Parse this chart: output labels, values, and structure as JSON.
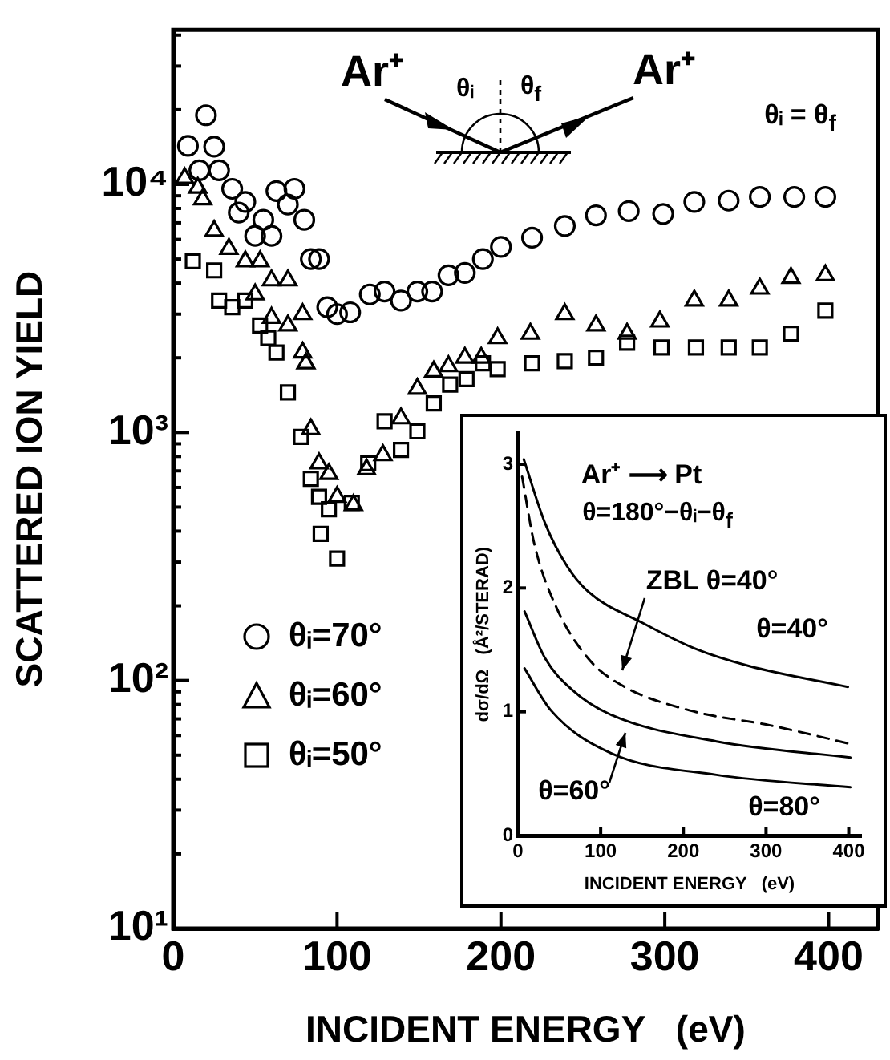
{
  "chart_data": [
    {
      "type": "scatter",
      "xlabel": "INCIDENT ENERGY   (eV)",
      "ylabel": "SCATTERED ION YIELD",
      "log": "y",
      "grid": false,
      "legend": "left",
      "xlim": [
        0,
        430
      ],
      "xticks": [
        0,
        100,
        200,
        300,
        400
      ],
      "ylim": [
        10,
        42000
      ],
      "yticks": [
        {
          "value": 10,
          "label": "10¹"
        },
        {
          "value": 20,
          "label": null
        },
        {
          "value": 30,
          "label": null
        },
        {
          "value": 40,
          "label": null
        },
        {
          "value": 50,
          "label": null
        },
        {
          "value": 60,
          "label": null
        },
        {
          "value": 70,
          "label": null
        },
        {
          "value": 80,
          "label": null
        },
        {
          "value": 90,
          "label": null
        },
        {
          "value": 100,
          "label": "10²"
        },
        {
          "value": 200,
          "label": null
        },
        {
          "value": 300,
          "label": null
        },
        {
          "value": 400,
          "label": null
        },
        {
          "value": 500,
          "label": null
        },
        {
          "value": 600,
          "label": null
        },
        {
          "value": 700,
          "label": null
        },
        {
          "value": 800,
          "label": null
        },
        {
          "value": 900,
          "label": null
        },
        {
          "value": 1000,
          "label": "10³"
        },
        {
          "value": 2000,
          "label": null
        },
        {
          "value": 3000,
          "label": null
        },
        {
          "value": 4000,
          "label": null
        },
        {
          "value": 5000,
          "label": null
        },
        {
          "value": 6000,
          "label": null
        },
        {
          "value": 7000,
          "label": null
        },
        {
          "value": 8000,
          "label": null
        },
        {
          "value": 9000,
          "label": null
        },
        {
          "value": 10000,
          "label": "10⁴"
        },
        {
          "value": 20000,
          "label": null
        },
        {
          "value": 30000,
          "label": null
        },
        {
          "value": 40000,
          "label": null
        }
      ],
      "annotations": [
        "Ar⁺",
        "θᵢ",
        "θ$_{f}$",
        "Ar⁺",
        "θᵢ = θ$_{f}$"
      ],
      "series": [
        {
          "name": "θᵢ=70°",
          "color": "#000000",
          "marker": "circle",
          "x": [
            9,
            16,
            20,
            25,
            28,
            36,
            40,
            44,
            50,
            55,
            60,
            63,
            70,
            74,
            80,
            84,
            89,
            94,
            100,
            108,
            120,
            129,
            139,
            149,
            158,
            168,
            178,
            189,
            200,
            219,
            239,
            258,
            278,
            299,
            318,
            339,
            358,
            379,
            398
          ],
          "values": [
            14300,
            11400,
            19000,
            14200,
            11400,
            9600,
            7700,
            8500,
            6200,
            7200,
            6200,
            9400,
            8300,
            9600,
            7200,
            5000,
            5000,
            3200,
            3000,
            3050,
            3600,
            3700,
            3400,
            3700,
            3700,
            4300,
            4400,
            5000,
            5600,
            6100,
            6800,
            7500,
            7800,
            7600,
            8500,
            8600,
            8900,
            8900,
            8900
          ]
        },
        {
          "name": "θᵢ=60°",
          "color": "#000000",
          "marker": "triangle",
          "x": [
            7,
            15,
            18,
            25,
            34,
            44,
            50,
            53,
            60,
            60,
            70,
            70,
            79,
            79,
            81,
            84,
            89,
            95,
            100,
            110,
            118,
            128,
            139,
            149,
            159,
            168,
            178,
            188,
            198,
            218,
            239,
            258,
            277,
            297,
            318,
            339,
            358,
            377,
            398
          ],
          "values": [
            10600,
            9700,
            8700,
            6500,
            5500,
            4900,
            3600,
            4900,
            4100,
            2900,
            4100,
            2700,
            3000,
            2100,
            1900,
            1030,
            750,
            680,
            550,
            510,
            710,
            810,
            1140,
            1500,
            1760,
            1850,
            2000,
            2000,
            2400,
            2500,
            3000,
            2700,
            2500,
            2800,
            3400,
            3400,
            3800,
            4200,
            4300
          ]
        },
        {
          "name": "θᵢ=50°",
          "color": "#000000",
          "marker": "square",
          "x": [
            12,
            25,
            28,
            36,
            44,
            53,
            58,
            63,
            70,
            78,
            84,
            89,
            90,
            95,
            100,
            109,
            119,
            129,
            139,
            149,
            159,
            169,
            179,
            189,
            198,
            219,
            239,
            258,
            277,
            298,
            319,
            339,
            358,
            377,
            398
          ],
          "values": [
            4900,
            4500,
            3400,
            3200,
            3400,
            2700,
            2400,
            2100,
            1450,
            960,
            650,
            550,
            390,
            490,
            310,
            520,
            750,
            1110,
            850,
            1010,
            1310,
            1560,
            1640,
            1900,
            1800,
            1900,
            1940,
            2000,
            2300,
            2200,
            2200,
            2200,
            2200,
            2500,
            3100
          ]
        }
      ]
    },
    {
      "type": "line",
      "xlabel": "INCIDENT ENERGY   (eV)",
      "ylabel": "dσ/dΩ   (Å²/STERAD)",
      "grid": false,
      "marker": "none",
      "xlim": [
        0,
        415
      ],
      "xticks": [
        0,
        100,
        200,
        300,
        400
      ],
      "ylim": [
        0,
        3.25
      ],
      "yticks": [
        0,
        1,
        2,
        3
      ],
      "annotations": [
        "Ar⁺ ⟶ Pt",
        "θ=180°−θᵢ−θ$_{f}$",
        "ZBL θ=40°",
        "θ=40°",
        "θ=60°",
        "θ=80°"
      ],
      "series": [
        {
          "color": "#000000",
          "line_style": "solid",
          "x": [
            7,
            33,
            59,
            85,
            150,
            214,
            279,
            399
          ],
          "values": [
            3.04,
            2.52,
            2.18,
            1.97,
            1.72,
            1.51,
            1.37,
            1.2
          ]
        },
        {
          "color": "#000000",
          "line_style": "dashed",
          "x": [
            5,
            20,
            46,
            85,
            124,
            208,
            305,
            402
          ],
          "values": [
            2.9,
            2.35,
            1.85,
            1.43,
            1.22,
            1.01,
            0.89,
            0.74
          ]
        },
        {
          "color": "#000000",
          "line_style": "solid",
          "x": [
            8,
            33,
            65,
            111,
            240,
            402
          ],
          "values": [
            1.81,
            1.43,
            1.18,
            0.98,
            0.76,
            0.63
          ]
        },
        {
          "color": "#000000",
          "line_style": "solid",
          "x": [
            8,
            40,
            111,
            240,
            402
          ],
          "values": [
            1.35,
            1.01,
            0.67,
            0.49,
            0.39
          ]
        }
      ]
    }
  ]
}
